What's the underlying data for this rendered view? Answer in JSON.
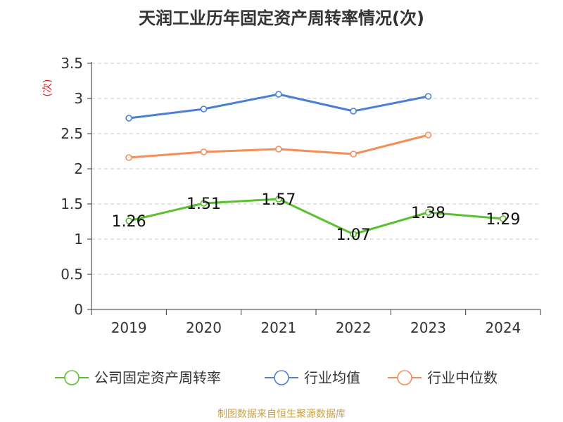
{
  "chart_data": {
    "type": "line",
    "title": "天润工业历年固定资产周转率情况(次)",
    "ylabel": "(次)",
    "xlabel": "",
    "categories": [
      "2019",
      "2020",
      "2021",
      "2022",
      "2023",
      "2024"
    ],
    "ylim": [
      0,
      3.5
    ],
    "yticks": [
      "0",
      "0.5",
      "1",
      "1.5",
      "2",
      "2.5",
      "3",
      "3.5"
    ],
    "grid": true,
    "legend_position": "bottom",
    "series": [
      {
        "name": "公司固定资产周转率",
        "color": "#5ac12e",
        "values": [
          1.26,
          1.51,
          1.57,
          1.07,
          1.38,
          1.29
        ],
        "labels": [
          "1.26",
          "1.51",
          "1.57",
          "1.07",
          "1.38",
          "1.29"
        ],
        "show_labels": true
      },
      {
        "name": "行业均值",
        "color": "#4a7fd6",
        "values": [
          2.72,
          2.85,
          3.06,
          2.82,
          3.03,
          null
        ],
        "show_labels": false
      },
      {
        "name": "行业中位数",
        "color": "#f58d56",
        "values": [
          2.16,
          2.24,
          2.28,
          2.21,
          2.48,
          null
        ],
        "show_labels": false
      }
    ]
  },
  "footer": {
    "source": "制图数据来自恒生聚源数据库"
  }
}
